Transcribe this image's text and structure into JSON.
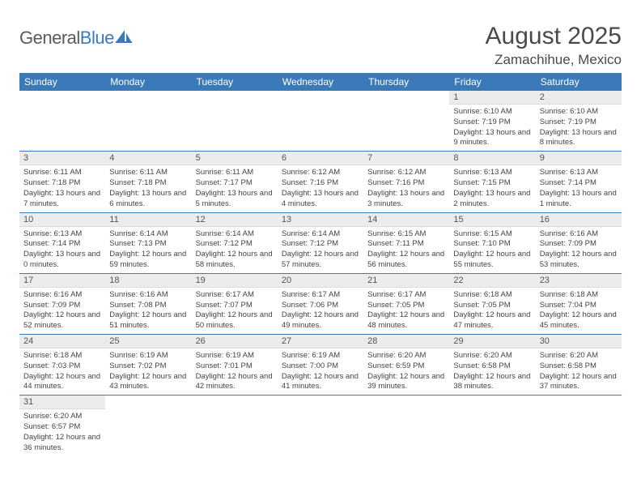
{
  "logo": {
    "part1": "General",
    "part2": "Blue"
  },
  "title": "August 2025",
  "location": "Zamachihue, Mexico",
  "colors": {
    "header_bg": "#3a7ab8",
    "header_fg": "#ffffff",
    "daynum_bg": "#ececec",
    "text": "#444444",
    "logo_dark": "#5a5a5a",
    "logo_blue": "#3a7ab8",
    "row_border": "#3a7ab8"
  },
  "weekdays": [
    "Sunday",
    "Monday",
    "Tuesday",
    "Wednesday",
    "Thursday",
    "Friday",
    "Saturday"
  ],
  "weeks": [
    [
      null,
      null,
      null,
      null,
      null,
      {
        "n": "1",
        "sr": "Sunrise: 6:10 AM",
        "ss": "Sunset: 7:19 PM",
        "dl": "Daylight: 13 hours and 9 minutes."
      },
      {
        "n": "2",
        "sr": "Sunrise: 6:10 AM",
        "ss": "Sunset: 7:19 PM",
        "dl": "Daylight: 13 hours and 8 minutes."
      }
    ],
    [
      {
        "n": "3",
        "sr": "Sunrise: 6:11 AM",
        "ss": "Sunset: 7:18 PM",
        "dl": "Daylight: 13 hours and 7 minutes."
      },
      {
        "n": "4",
        "sr": "Sunrise: 6:11 AM",
        "ss": "Sunset: 7:18 PM",
        "dl": "Daylight: 13 hours and 6 minutes."
      },
      {
        "n": "5",
        "sr": "Sunrise: 6:11 AM",
        "ss": "Sunset: 7:17 PM",
        "dl": "Daylight: 13 hours and 5 minutes."
      },
      {
        "n": "6",
        "sr": "Sunrise: 6:12 AM",
        "ss": "Sunset: 7:16 PM",
        "dl": "Daylight: 13 hours and 4 minutes."
      },
      {
        "n": "7",
        "sr": "Sunrise: 6:12 AM",
        "ss": "Sunset: 7:16 PM",
        "dl": "Daylight: 13 hours and 3 minutes."
      },
      {
        "n": "8",
        "sr": "Sunrise: 6:13 AM",
        "ss": "Sunset: 7:15 PM",
        "dl": "Daylight: 13 hours and 2 minutes."
      },
      {
        "n": "9",
        "sr": "Sunrise: 6:13 AM",
        "ss": "Sunset: 7:14 PM",
        "dl": "Daylight: 13 hours and 1 minute."
      }
    ],
    [
      {
        "n": "10",
        "sr": "Sunrise: 6:13 AM",
        "ss": "Sunset: 7:14 PM",
        "dl": "Daylight: 13 hours and 0 minutes."
      },
      {
        "n": "11",
        "sr": "Sunrise: 6:14 AM",
        "ss": "Sunset: 7:13 PM",
        "dl": "Daylight: 12 hours and 59 minutes."
      },
      {
        "n": "12",
        "sr": "Sunrise: 6:14 AM",
        "ss": "Sunset: 7:12 PM",
        "dl": "Daylight: 12 hours and 58 minutes."
      },
      {
        "n": "13",
        "sr": "Sunrise: 6:14 AM",
        "ss": "Sunset: 7:12 PM",
        "dl": "Daylight: 12 hours and 57 minutes."
      },
      {
        "n": "14",
        "sr": "Sunrise: 6:15 AM",
        "ss": "Sunset: 7:11 PM",
        "dl": "Daylight: 12 hours and 56 minutes."
      },
      {
        "n": "15",
        "sr": "Sunrise: 6:15 AM",
        "ss": "Sunset: 7:10 PM",
        "dl": "Daylight: 12 hours and 55 minutes."
      },
      {
        "n": "16",
        "sr": "Sunrise: 6:16 AM",
        "ss": "Sunset: 7:09 PM",
        "dl": "Daylight: 12 hours and 53 minutes."
      }
    ],
    [
      {
        "n": "17",
        "sr": "Sunrise: 6:16 AM",
        "ss": "Sunset: 7:09 PM",
        "dl": "Daylight: 12 hours and 52 minutes."
      },
      {
        "n": "18",
        "sr": "Sunrise: 6:16 AM",
        "ss": "Sunset: 7:08 PM",
        "dl": "Daylight: 12 hours and 51 minutes."
      },
      {
        "n": "19",
        "sr": "Sunrise: 6:17 AM",
        "ss": "Sunset: 7:07 PM",
        "dl": "Daylight: 12 hours and 50 minutes."
      },
      {
        "n": "20",
        "sr": "Sunrise: 6:17 AM",
        "ss": "Sunset: 7:06 PM",
        "dl": "Daylight: 12 hours and 49 minutes."
      },
      {
        "n": "21",
        "sr": "Sunrise: 6:17 AM",
        "ss": "Sunset: 7:05 PM",
        "dl": "Daylight: 12 hours and 48 minutes."
      },
      {
        "n": "22",
        "sr": "Sunrise: 6:18 AM",
        "ss": "Sunset: 7:05 PM",
        "dl": "Daylight: 12 hours and 47 minutes."
      },
      {
        "n": "23",
        "sr": "Sunrise: 6:18 AM",
        "ss": "Sunset: 7:04 PM",
        "dl": "Daylight: 12 hours and 45 minutes."
      }
    ],
    [
      {
        "n": "24",
        "sr": "Sunrise: 6:18 AM",
        "ss": "Sunset: 7:03 PM",
        "dl": "Daylight: 12 hours and 44 minutes."
      },
      {
        "n": "25",
        "sr": "Sunrise: 6:19 AM",
        "ss": "Sunset: 7:02 PM",
        "dl": "Daylight: 12 hours and 43 minutes."
      },
      {
        "n": "26",
        "sr": "Sunrise: 6:19 AM",
        "ss": "Sunset: 7:01 PM",
        "dl": "Daylight: 12 hours and 42 minutes."
      },
      {
        "n": "27",
        "sr": "Sunrise: 6:19 AM",
        "ss": "Sunset: 7:00 PM",
        "dl": "Daylight: 12 hours and 41 minutes."
      },
      {
        "n": "28",
        "sr": "Sunrise: 6:20 AM",
        "ss": "Sunset: 6:59 PM",
        "dl": "Daylight: 12 hours and 39 minutes."
      },
      {
        "n": "29",
        "sr": "Sunrise: 6:20 AM",
        "ss": "Sunset: 6:58 PM",
        "dl": "Daylight: 12 hours and 38 minutes."
      },
      {
        "n": "30",
        "sr": "Sunrise: 6:20 AM",
        "ss": "Sunset: 6:58 PM",
        "dl": "Daylight: 12 hours and 37 minutes."
      }
    ],
    [
      {
        "n": "31",
        "sr": "Sunrise: 6:20 AM",
        "ss": "Sunset: 6:57 PM",
        "dl": "Daylight: 12 hours and 36 minutes."
      },
      null,
      null,
      null,
      null,
      null,
      null
    ]
  ]
}
